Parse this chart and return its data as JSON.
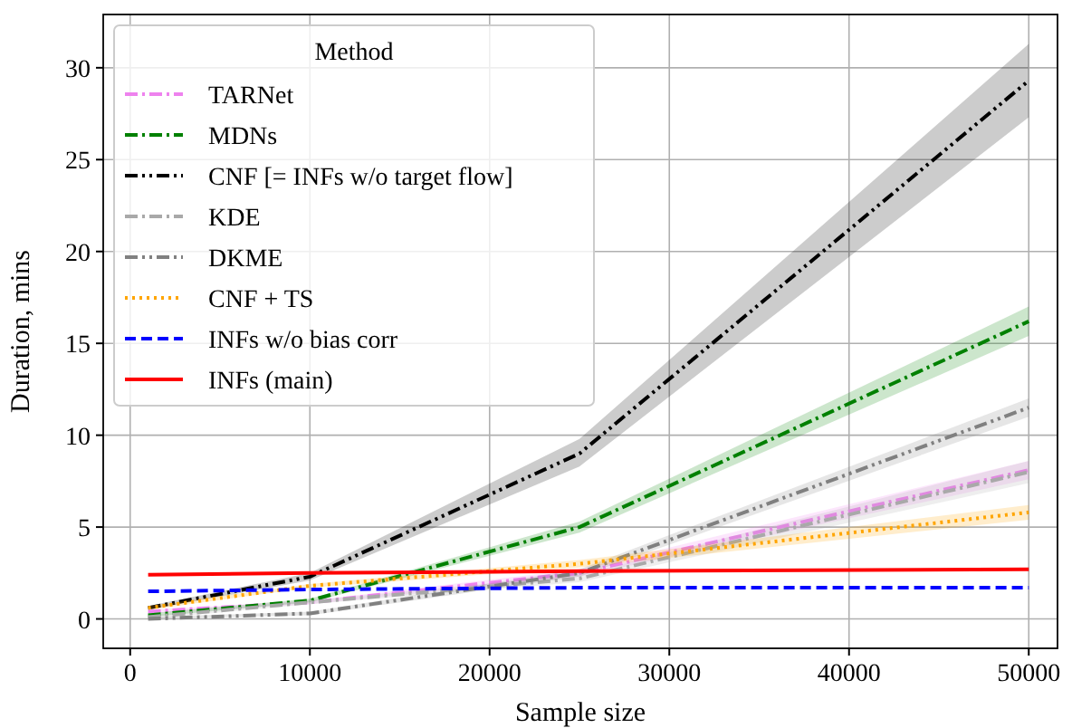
{
  "chart_data": {
    "type": "line",
    "xlabel": "Sample size",
    "ylabel": "Duration, mins",
    "legend_title": "Method",
    "legend": "top left",
    "grid": true,
    "x": [
      1000,
      10000,
      25000,
      50000
    ],
    "xlim": [
      -1500,
      51600
    ],
    "xticks": [
      0,
      10000,
      20000,
      30000,
      40000,
      50000
    ],
    "ylim": [
      -1.6,
      32.9
    ],
    "yticks": [
      0,
      5,
      10,
      15,
      20,
      25,
      30
    ],
    "series": [
      {
        "name": "TARNet",
        "color": "#ee82ee",
        "line_style": "dashdot",
        "values": [
          0.4,
          0.9,
          2.5,
          8.1
        ],
        "lower": [
          0.3,
          0.8,
          2.3,
          7.6
        ],
        "upper": [
          0.5,
          1.0,
          2.7,
          8.6
        ]
      },
      {
        "name": "MDNs",
        "color": "#008000",
        "line_style": "dashdot",
        "values": [
          0.2,
          1.0,
          5.0,
          16.2
        ],
        "lower": [
          0.1,
          0.9,
          4.7,
          15.4
        ],
        "upper": [
          0.3,
          1.1,
          5.3,
          17.0
        ]
      },
      {
        "name": "CNF [= INFs w/o target flow]",
        "color": "#000000",
        "line_style": "dashdotdot",
        "values": [
          0.6,
          2.3,
          9.0,
          29.3
        ],
        "lower": [
          0.5,
          2.1,
          8.3,
          27.3
        ],
        "upper": [
          0.7,
          2.5,
          9.8,
          31.3
        ]
      },
      {
        "name": "KDE",
        "color": "#a9a9a9",
        "line_style": "dashdot",
        "values": [
          0.1,
          0.9,
          2.2,
          8.0
        ],
        "lower": [
          0.0,
          0.8,
          2.0,
          7.4
        ],
        "upper": [
          0.2,
          1.0,
          2.4,
          8.6
        ]
      },
      {
        "name": "DKME",
        "color": "#808080",
        "line_style": "dashdotdot",
        "values": [
          0.0,
          0.3,
          2.5,
          11.5
        ],
        "lower": [
          0.0,
          0.2,
          2.3,
          11.0
        ],
        "upper": [
          0.1,
          0.4,
          2.7,
          12.0
        ]
      },
      {
        "name": "CNF + TS",
        "color": "#ffa500",
        "line_style": "dotted",
        "values": [
          0.6,
          1.8,
          3.0,
          5.8
        ],
        "lower": [
          0.5,
          1.7,
          2.8,
          5.4
        ],
        "upper": [
          0.7,
          1.9,
          3.2,
          6.2
        ]
      },
      {
        "name": "INFs w/o bias corr",
        "color": "#0000ff",
        "line_style": "dashed",
        "values": [
          1.5,
          1.6,
          1.7,
          1.7
        ]
      },
      {
        "name": "INFs (main)",
        "color": "#ff0000",
        "line_style": "solid",
        "values": [
          2.4,
          2.5,
          2.6,
          2.7
        ]
      }
    ]
  }
}
